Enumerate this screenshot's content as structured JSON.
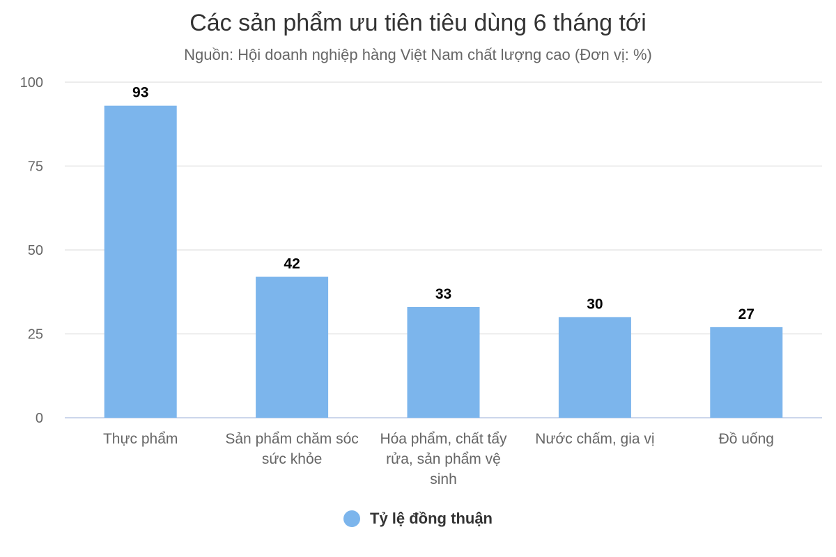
{
  "chart_data": {
    "type": "bar",
    "title": "Các sản phẩm ưu tiên tiêu dùng 6 tháng tới",
    "subtitle": "Nguồn: Hội doanh nghiệp hàng Việt Nam chất lượng cao (Đơn vị: %)",
    "categories": [
      "Thực phẩm",
      "Sản phẩm chăm sóc sức khỏe",
      "Hóa phẩm, chất tẩy rửa, sản phẩm vệ sinh",
      "Nước chấm, gia vị",
      "Đồ uống"
    ],
    "category_lines": [
      [
        "Thực phẩm"
      ],
      [
        "Sản phẩm chăm sóc",
        "sức khỏe"
      ],
      [
        "Hóa phẩm, chất tẩy",
        "rửa, sản phẩm vệ",
        "sinh"
      ],
      [
        "Nước chấm, gia vị"
      ],
      [
        "Đồ uống"
      ]
    ],
    "series": [
      {
        "name": "Tỷ lệ đồng thuận",
        "values": [
          93,
          42,
          33,
          30,
          27
        ],
        "color": "#7cb5ec"
      }
    ],
    "ylim": [
      0,
      100
    ],
    "yticks": [
      0,
      25,
      50,
      75,
      100
    ],
    "grid": true,
    "data_labels": true,
    "legend_position": "bottom-center"
  }
}
